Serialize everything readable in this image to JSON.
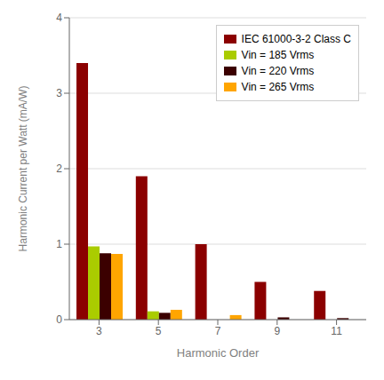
{
  "chart_data": {
    "type": "bar",
    "xlabel": "Harmonic Order",
    "ylabel": "Harmonic Current per Watt (mA/W)",
    "categories": [
      "3",
      "5",
      "7",
      "9",
      "11"
    ],
    "series": [
      {
        "name": "IEC 61000-3-2 Class C",
        "color": "#8B0000",
        "values": [
          3.4,
          1.9,
          1.0,
          0.5,
          0.38
        ]
      },
      {
        "name": "Vin = 185 Vrms",
        "color": "#AACC00",
        "values": [
          0.97,
          0.11,
          0.0,
          0.0,
          0.0
        ]
      },
      {
        "name": "Vin = 220 Vrms",
        "color": "#3B0000",
        "values": [
          0.88,
          0.09,
          0.0,
          0.03,
          0.02
        ]
      },
      {
        "name": "Vin = 265 Vrms",
        "color": "#FFA500",
        "values": [
          0.87,
          0.13,
          0.06,
          0.0,
          0.0
        ]
      }
    ],
    "ylim": [
      0,
      4
    ],
    "yticks": [
      0,
      1,
      2,
      3,
      4
    ],
    "grid": true,
    "legend": "upper right"
  }
}
